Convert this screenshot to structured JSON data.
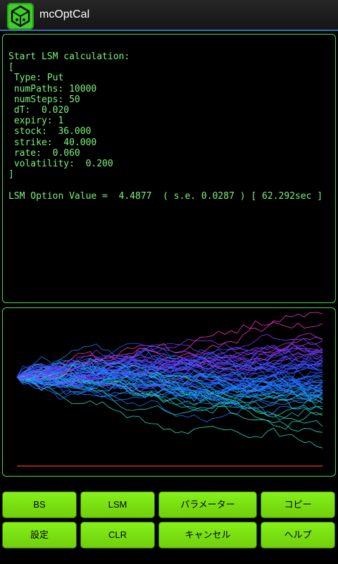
{
  "app": {
    "title": "mcOptCal",
    "icon": "app-cube-icon"
  },
  "console_lines": [
    "Start LSM calculation:",
    "[",
    " Type: Put",
    " numPaths: 10000",
    " numSteps: 50",
    " dT:  0.020",
    " expiry: 1",
    " stock:  36.000",
    " strike:  40.000",
    " rate:  0.060",
    " volatility:  0.200",
    "]",
    "",
    "LSM Option Value =  4.4877  ( s.e. 0.0287 ) [ 62.292sec ]"
  ],
  "plot": {
    "line_color": "#ff3030",
    "path_colors": [
      "#1fe0c0",
      "#1f80ff",
      "#2050ff",
      "#a030ff",
      "#ff30c0"
    ]
  },
  "buttons": {
    "bs": "BS",
    "lsm": "LSM",
    "params": "パラメーター",
    "copy": "コピー",
    "settings": "設定",
    "clr": "CLR",
    "cancel": "キャンセル",
    "help": "ヘルプ"
  },
  "colors": {
    "accent_green": "#4bd84b",
    "button_green": "#7ce012",
    "console_text": "#7cf27c"
  }
}
